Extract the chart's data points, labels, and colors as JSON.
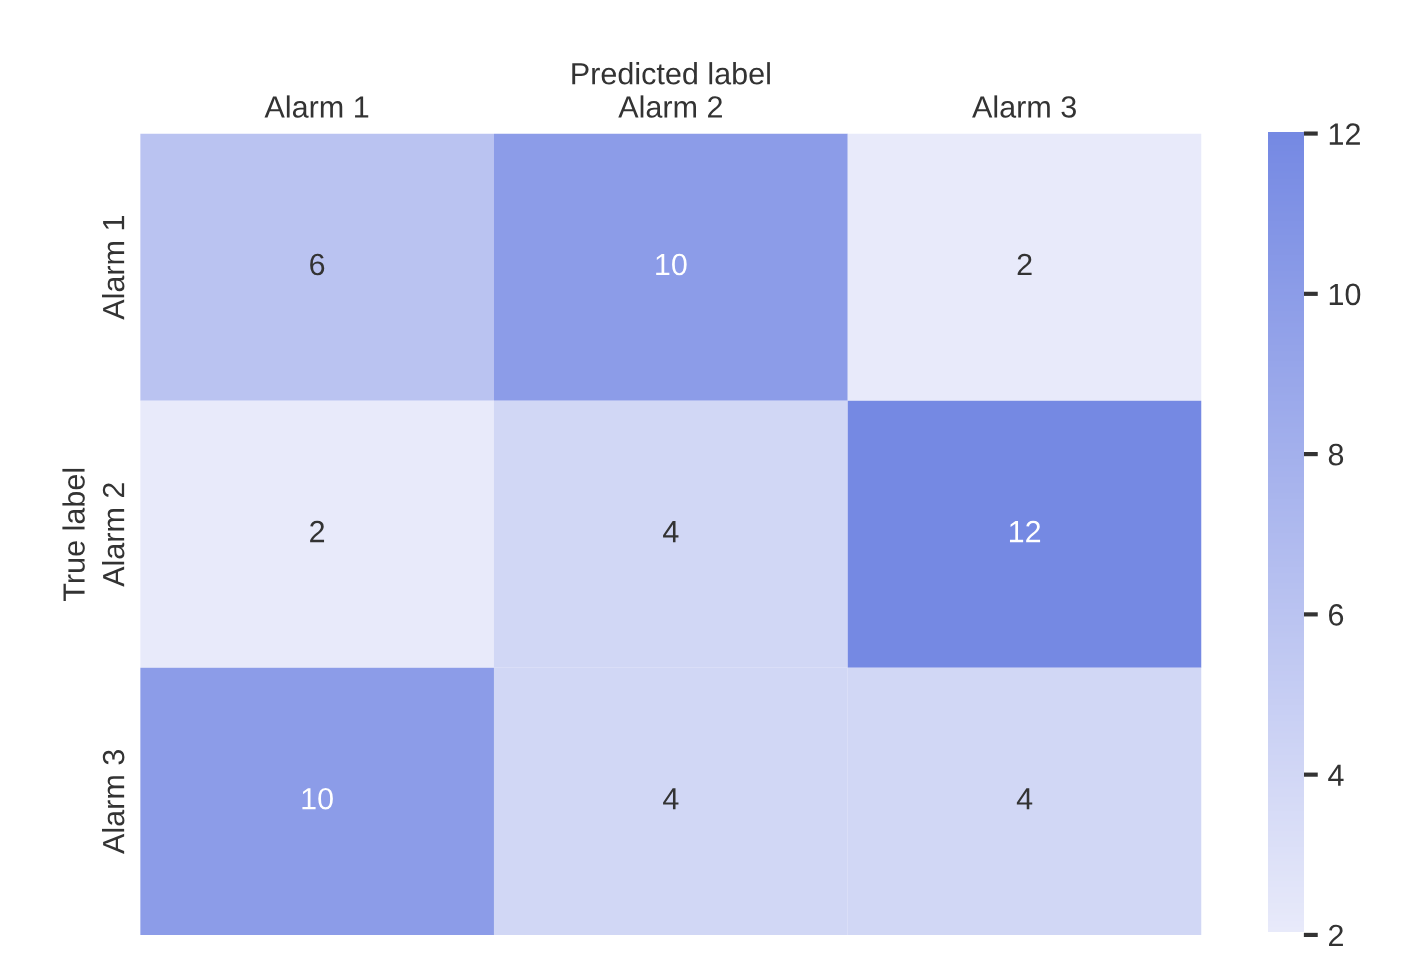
{
  "chart_data": {
    "type": "heatmap",
    "xlabel": "Predicted label",
    "ylabel": "True label",
    "categories": [
      "Alarm 1",
      "Alarm 2",
      "Alarm 3"
    ],
    "y_categories": [
      "Alarm 1",
      "Alarm 2",
      "Alarm 3"
    ],
    "cells": [
      [
        6,
        10,
        2
      ],
      [
        2,
        4,
        12
      ],
      [
        10,
        4,
        4
      ]
    ],
    "data_labels": true,
    "colors": [
      "#e8eafa",
      "#7589e3"
    ],
    "clim": [
      2,
      12
    ],
    "cticks": [
      2,
      4,
      6,
      8,
      10,
      12
    ]
  }
}
